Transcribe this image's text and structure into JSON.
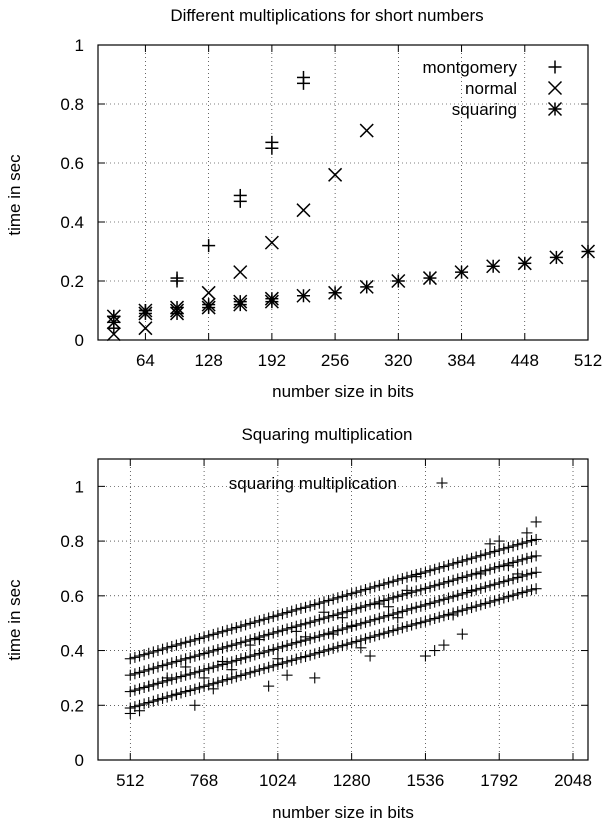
{
  "chart_data": [
    {
      "type": "scatter",
      "title": "Different multiplications for short numbers",
      "xlabel": "number size in bits",
      "ylabel": "time in sec",
      "xlim": [
        16,
        512
      ],
      "ylim": [
        0,
        1
      ],
      "x_ticks": [
        64,
        128,
        192,
        256,
        320,
        384,
        448,
        512
      ],
      "x_tick_labels": [
        "64",
        "128",
        "192",
        "256",
        "320",
        "384",
        "448",
        "512"
      ],
      "y_ticks": [
        0,
        0.2,
        0.4,
        0.6,
        0.8,
        1
      ],
      "y_tick_labels": [
        "0",
        "0.2",
        "0.4",
        "0.6",
        "0.8",
        "1"
      ],
      "grid": true,
      "legend_position": "top-right",
      "series": [
        {
          "name": "montgomery",
          "marker": "plus",
          "points": [
            [
              32,
              0.04
            ],
            [
              32,
              0.08
            ],
            [
              64,
              0.1
            ],
            [
              96,
              0.2
            ],
            [
              96,
              0.21
            ],
            [
              128,
              0.32
            ],
            [
              160,
              0.47
            ],
            [
              160,
              0.49
            ],
            [
              192,
              0.65
            ],
            [
              192,
              0.67
            ],
            [
              224,
              0.87
            ],
            [
              224,
              0.89
            ]
          ]
        },
        {
          "name": "normal",
          "marker": "cross",
          "points": [
            [
              32,
              0.02
            ],
            [
              64,
              0.04
            ],
            [
              96,
              0.1
            ],
            [
              128,
              0.16
            ],
            [
              160,
              0.23
            ],
            [
              192,
              0.33
            ],
            [
              224,
              0.44
            ],
            [
              256,
              0.56
            ],
            [
              288,
              0.71
            ]
          ]
        },
        {
          "name": "squaring",
          "marker": "star",
          "points": [
            [
              32,
              0.06
            ],
            [
              32,
              0.08
            ],
            [
              64,
              0.09
            ],
            [
              64,
              0.1
            ],
            [
              96,
              0.09
            ],
            [
              96,
              0.11
            ],
            [
              128,
              0.11
            ],
            [
              128,
              0.12
            ],
            [
              160,
              0.12
            ],
            [
              160,
              0.13
            ],
            [
              192,
              0.13
            ],
            [
              192,
              0.14
            ],
            [
              224,
              0.15
            ],
            [
              256,
              0.16
            ],
            [
              288,
              0.18
            ],
            [
              320,
              0.2
            ],
            [
              352,
              0.21
            ],
            [
              384,
              0.23
            ],
            [
              416,
              0.25
            ],
            [
              448,
              0.26
            ],
            [
              480,
              0.28
            ],
            [
              512,
              0.3
            ]
          ]
        }
      ]
    },
    {
      "type": "scatter",
      "title": "Squaring multiplication",
      "xlabel": "number size in bits",
      "ylabel": "time in sec",
      "xlim": [
        400,
        2100
      ],
      "ylim": [
        0,
        1.1
      ],
      "x_ticks": [
        512,
        768,
        1024,
        1280,
        1536,
        1792,
        2048
      ],
      "x_tick_labels": [
        "512",
        "768",
        "1024",
        "1280",
        "1536",
        "1792",
        "2048"
      ],
      "y_ticks": [
        0,
        0.2,
        0.4,
        0.6,
        0.8,
        1
      ],
      "y_tick_labels": [
        "0",
        "0.2",
        "0.4",
        "0.6",
        "0.8",
        "1"
      ],
      "grid": true,
      "legend_position": "top-right",
      "series": [
        {
          "name": "squaring multiplication",
          "marker": "plus",
          "band_bases": [
            0.19,
            0.25,
            0.31,
            0.37
          ],
          "band_slope_per_1000_bits": 0.31,
          "band_x_start": 512,
          "band_x_end": 1920,
          "band_x_step": 16,
          "sparse_points": [
            [
              512,
              0.17
            ],
            [
              544,
              0.18
            ],
            [
              576,
              0.27
            ],
            [
              608,
              0.22
            ],
            [
              640,
              0.3
            ],
            [
              672,
              0.24
            ],
            [
              704,
              0.34
            ],
            [
              736,
              0.2
            ],
            [
              768,
              0.3
            ],
            [
              800,
              0.26
            ],
            [
              832,
              0.36
            ],
            [
              864,
              0.33
            ],
            [
              896,
              0.37
            ],
            [
              928,
              0.42
            ],
            [
              960,
              0.44
            ],
            [
              992,
              0.27
            ],
            [
              1024,
              0.37
            ],
            [
              1056,
              0.31
            ],
            [
              1088,
              0.47
            ],
            [
              1120,
              0.45
            ],
            [
              1152,
              0.3
            ],
            [
              1184,
              0.54
            ],
            [
              1216,
              0.46
            ],
            [
              1248,
              0.52
            ],
            [
              1280,
              0.49
            ],
            [
              1312,
              0.41
            ],
            [
              1344,
              0.38
            ],
            [
              1376,
              0.57
            ],
            [
              1408,
              0.56
            ],
            [
              1440,
              0.52
            ],
            [
              1472,
              0.62
            ],
            [
              1504,
              0.67
            ],
            [
              1536,
              0.38
            ],
            [
              1568,
              0.4
            ],
            [
              1600,
              0.42
            ],
            [
              1632,
              0.53
            ],
            [
              1664,
              0.46
            ],
            [
              1696,
              0.62
            ],
            [
              1728,
              0.68
            ],
            [
              1760,
              0.79
            ],
            [
              1792,
              0.8
            ],
            [
              1824,
              0.71
            ],
            [
              1856,
              0.68
            ],
            [
              1888,
              0.83
            ],
            [
              1920,
              0.87
            ]
          ]
        }
      ]
    }
  ]
}
